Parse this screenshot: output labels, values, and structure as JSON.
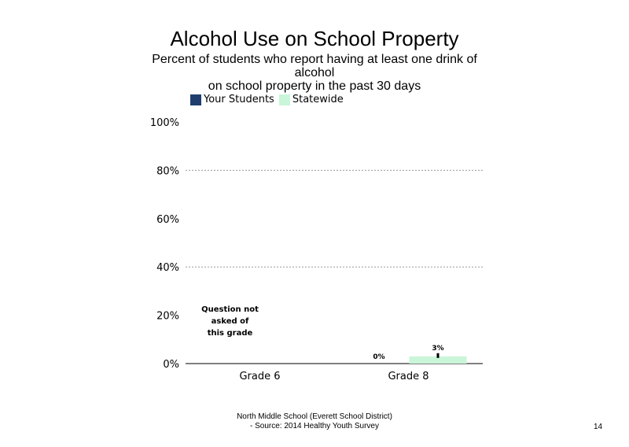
{
  "chart_data": {
    "type": "bar",
    "title": "Alcohol Use on School  Property",
    "subtitle_lines": [
      "Percent of students  who report having at least one drink of",
      "alcohol",
      "on school property in the past 30 days"
    ],
    "categories": [
      "Grade 6",
      "Grade 8"
    ],
    "series": [
      {
        "name": "Your Students",
        "color": "#1f3e6e",
        "values": [
          null,
          0
        ],
        "labels": [
          "",
          "0%"
        ]
      },
      {
        "name": "Statewide",
        "color": "#c9f5d8",
        "values": [
          null,
          3
        ],
        "labels": [
          "",
          "3%"
        ]
      }
    ],
    "category_notes": [
      "Question not asked of this grade",
      ""
    ],
    "note_lines": [
      "Question not",
      "asked of",
      "this grade"
    ],
    "y_ticks": [
      "0%",
      "20%",
      "40%",
      "60%",
      "80%",
      "100%"
    ],
    "ylim": [
      0,
      100
    ],
    "grid": "dotted horizontal",
    "legend_position": "top-left"
  },
  "footer": {
    "line1": "North Middle School (Everett School District)",
    "line2": "- Source: 2014 Healthy  Youth Survey"
  },
  "page_number": "14"
}
